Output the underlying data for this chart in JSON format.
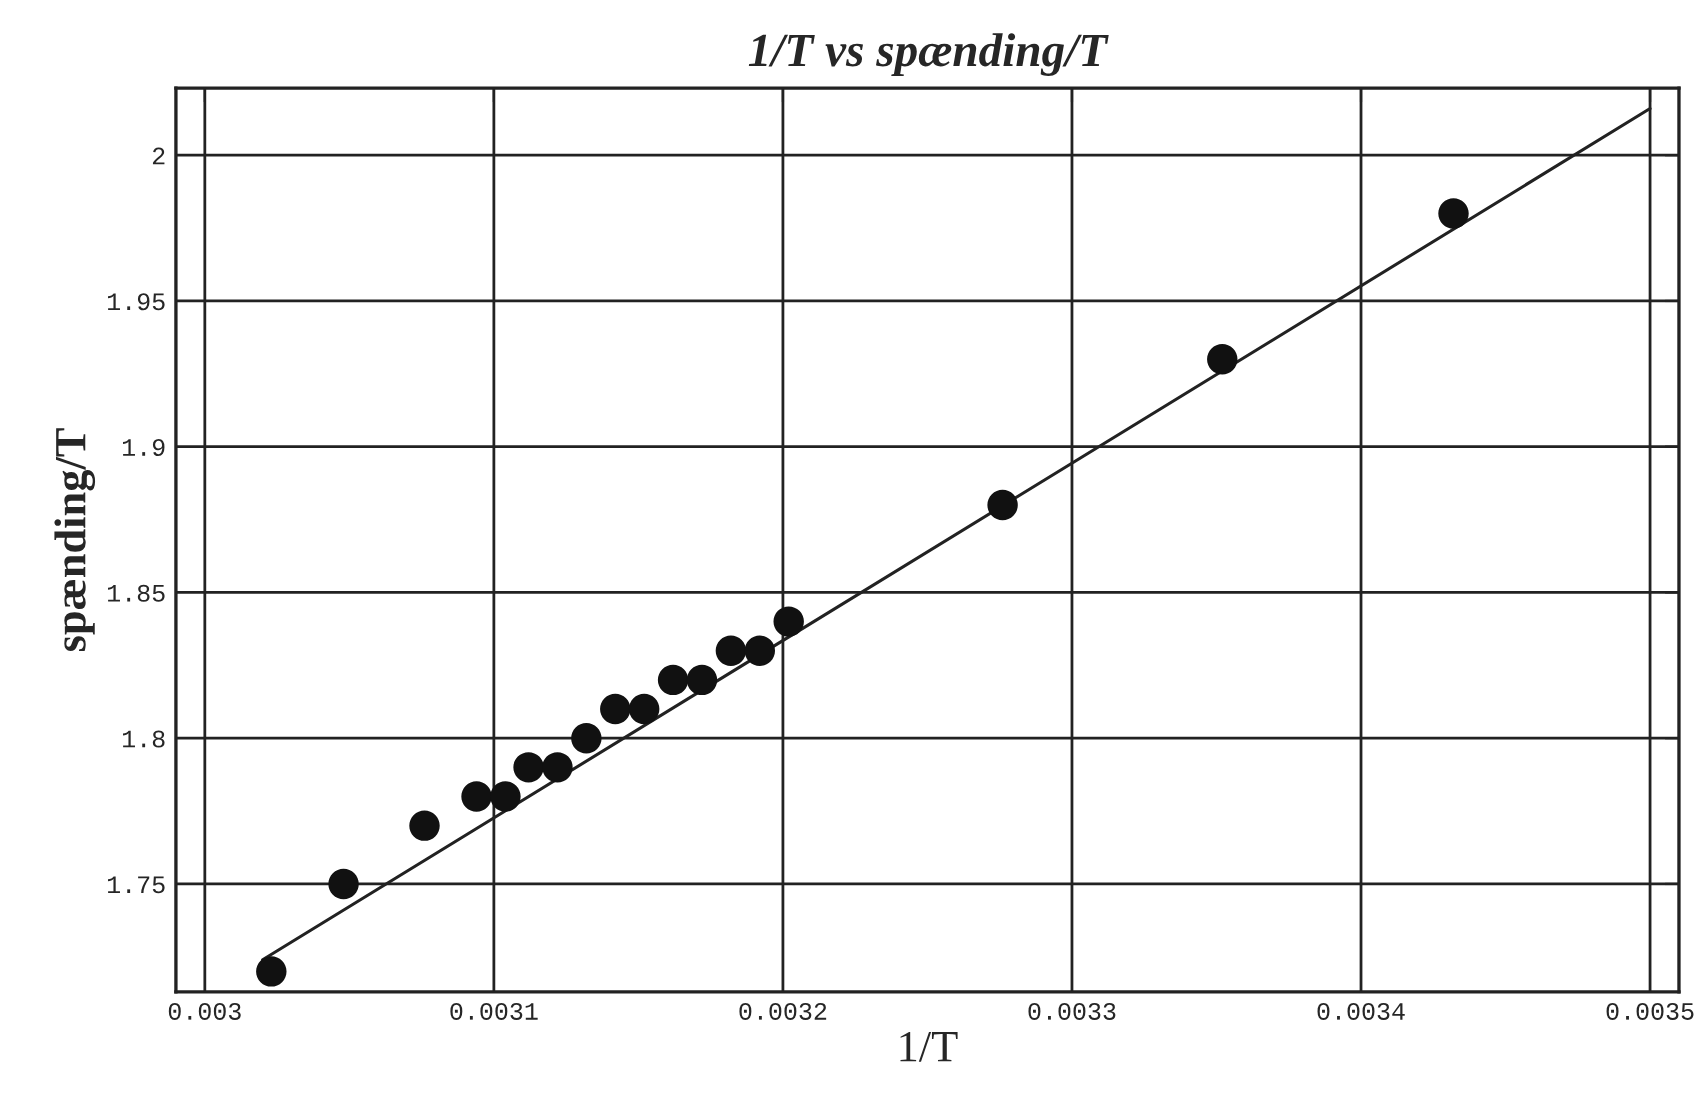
{
  "chart_data": {
    "type": "scatter",
    "title": "1/T vs spænding/T",
    "xlabel": "1/T",
    "ylabel": "spænding/T",
    "xlim": [
      0.00299,
      0.00351
    ],
    "ylim": [
      1.713,
      2.023
    ],
    "xticks": [
      0.003,
      0.0031,
      0.0032,
      0.0033,
      0.0034,
      0.0035
    ],
    "yticks": [
      1.75,
      1.8,
      1.85,
      1.9,
      1.95,
      2
    ],
    "grid": true,
    "series": [
      {
        "marker": "circle",
        "color": "#111111",
        "x": [
          0.003023,
          0.003048,
          0.003076,
          0.003094,
          0.003104,
          0.003112,
          0.003122,
          0.003132,
          0.003142,
          0.003152,
          0.003162,
          0.003172,
          0.003182,
          0.003192,
          0.003202,
          0.003276,
          0.003352,
          0.003432
        ],
        "values": [
          1.72,
          1.75,
          1.77,
          1.78,
          1.78,
          1.79,
          1.79,
          1.8,
          1.81,
          1.81,
          1.82,
          1.82,
          1.83,
          1.83,
          1.84,
          1.88,
          1.93,
          1.98
        ]
      },
      {
        "type": "line",
        "marker": "none",
        "color": "#222222",
        "x": [
          0.00302,
          0.0035
        ],
        "values": [
          1.724,
          2.016
        ]
      }
    ]
  }
}
